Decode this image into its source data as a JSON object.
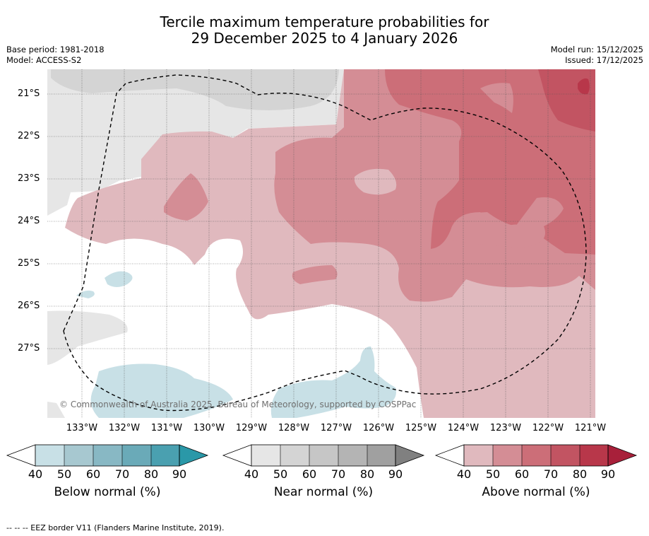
{
  "title": {
    "line1": "Tercile maximum temperature probabilities for",
    "line2": "29 December 2025 to 4 January 2026"
  },
  "meta_left": {
    "base_period": "Base period: 1981-2018",
    "model": "Model: ACCESS-S2"
  },
  "meta_right": {
    "model_run": "Model run: 15/12/2025",
    "issued": "Issued: 17/12/2025"
  },
  "map": {
    "lat_labels": [
      "21°S",
      "22°S",
      "23°S",
      "24°S",
      "25°S",
      "26°S",
      "27°S"
    ],
    "lon_labels": [
      "133°W",
      "132°W",
      "131°W",
      "130°W",
      "129°W",
      "128°W",
      "127°W",
      "126°W",
      "125°W",
      "124°W",
      "123°W",
      "122°W",
      "121°W"
    ],
    "copyright": "© Commonwealth of Australia 2025, Bureau of Meteorology, supported by COSPPac"
  },
  "colorbars": {
    "tick_labels": [
      "40",
      "50",
      "60",
      "70",
      "80",
      "90"
    ],
    "below": {
      "title": "Below normal (%)",
      "colors": [
        "#ffffff",
        "#c8e0e6",
        "#a7c8d0",
        "#88b8c4",
        "#6aaab8",
        "#4aa0b0",
        "#2a98a8"
      ]
    },
    "near": {
      "title": "Near normal (%)",
      "colors": [
        "#ffffff",
        "#e6e6e6",
        "#d4d4d4",
        "#c6c6c6",
        "#b4b4b4",
        "#a0a0a0",
        "#808080"
      ]
    },
    "above": {
      "title": "Above normal (%)",
      "colors": [
        "#ffffff",
        "#e0b9be",
        "#d48d95",
        "#cc6e78",
        "#c25462",
        "#b8374a",
        "#a8203a"
      ]
    }
  },
  "footnote": "--  --  -- EEZ border V11 (Flanders Marine Institute, 2019)."
}
